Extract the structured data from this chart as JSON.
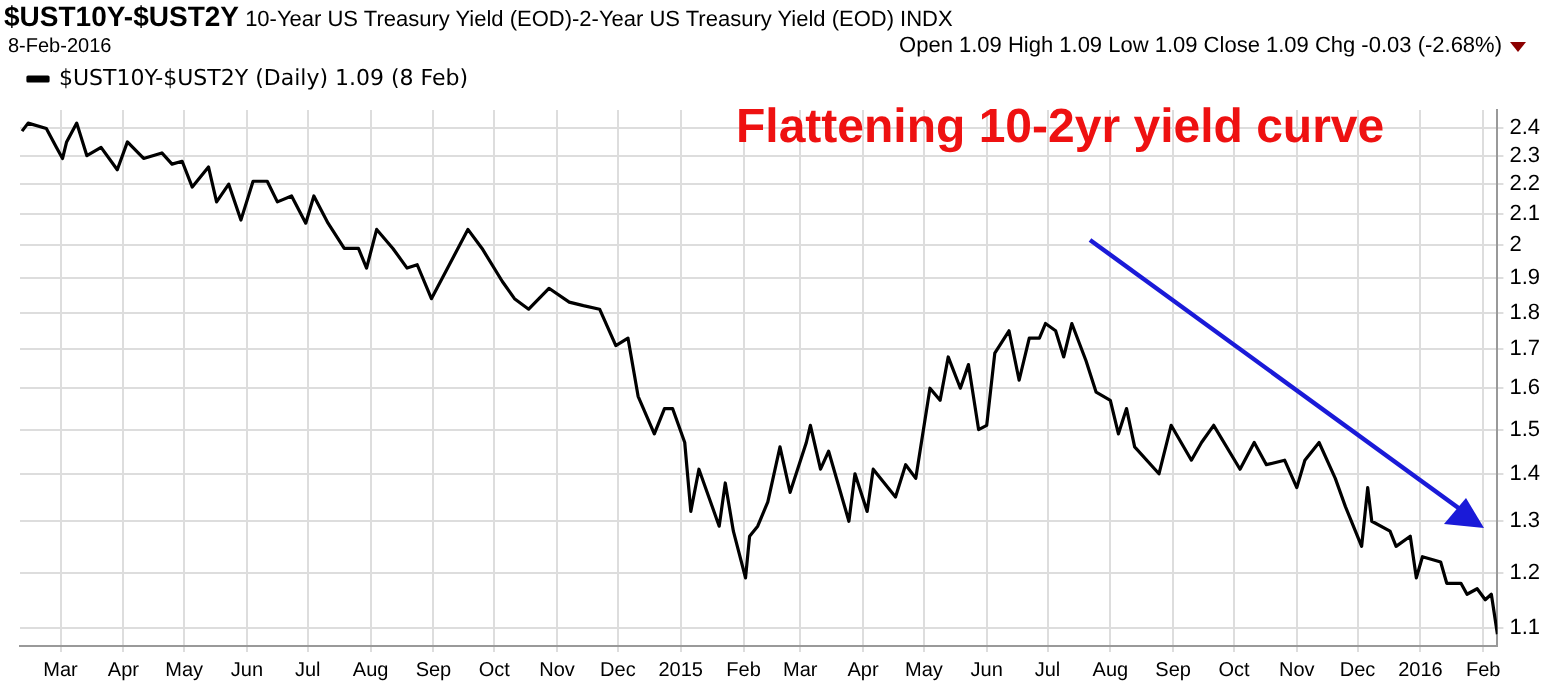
{
  "chart_data": {
    "type": "line",
    "title": "$UST10Y-$UST2Y",
    "subtitle": "10-Year US Treasury Yield (EOD)-2-Year US Treasury Yield (EOD) INDX",
    "annotations": [
      "8-Feb-2016",
      "Open 1.09 High 1.09 Low 1.09 Close 1.09 Chg -0.03 (-2.68%)",
      "Flattening 10-2yr yield curve"
    ],
    "log": "y",
    "grid": true,
    "legend": "top left",
    "xlim": [
      "2014-02-09",
      "2016-02-08"
    ],
    "xticks": [
      {
        "value": "2014-03-01",
        "label": "Mar"
      },
      {
        "value": "2014-04-01",
        "label": "Apr"
      },
      {
        "value": "2014-05-01",
        "label": "May"
      },
      {
        "value": "2014-06-01",
        "label": "Jun"
      },
      {
        "value": "2014-07-01",
        "label": "Jul"
      },
      {
        "value": "2014-08-01",
        "label": "Aug"
      },
      {
        "value": "2014-09-01",
        "label": "Sep"
      },
      {
        "value": "2014-10-01",
        "label": "Oct"
      },
      {
        "value": "2014-11-01",
        "label": "Nov"
      },
      {
        "value": "2014-12-01",
        "label": "Dec"
      },
      {
        "value": "2015-01-01",
        "label": "2015"
      },
      {
        "value": "2015-02-01",
        "label": "Feb"
      },
      {
        "value": "2015-03-01",
        "label": "Mar"
      },
      {
        "value": "2015-04-01",
        "label": "Apr"
      },
      {
        "value": "2015-05-01",
        "label": "May"
      },
      {
        "value": "2015-06-01",
        "label": "Jun"
      },
      {
        "value": "2015-07-01",
        "label": "Jul"
      },
      {
        "value": "2015-08-01",
        "label": "Aug"
      },
      {
        "value": "2015-09-01",
        "label": "Sep"
      },
      {
        "value": "2015-10-01",
        "label": "Oct"
      },
      {
        "value": "2015-11-01",
        "label": "Nov"
      },
      {
        "value": "2015-12-01",
        "label": "Dec"
      },
      {
        "value": "2016-01-01",
        "label": "2016"
      },
      {
        "value": "2016-02-01",
        "label": "Feb"
      }
    ],
    "ylim": [
      1.07,
      2.47
    ],
    "yticks": [
      1.1,
      1.2,
      1.3,
      1.4,
      1.5,
      1.6,
      1.7,
      1.8,
      1.9,
      2.0,
      2.1,
      2.2,
      2.3,
      2.4
    ],
    "series": [
      {
        "name": "$UST10Y-$UST2Y (Daily) 1.09 (8 Feb)",
        "color": "#000000",
        "x": [
          "2014-02-10",
          "2014-02-13",
          "2014-02-22",
          "2014-02-27",
          "2014-03-02",
          "2014-03-04",
          "2014-03-09",
          "2014-03-14",
          "2014-03-21",
          "2014-03-29",
          "2014-04-03",
          "2014-04-11",
          "2014-04-20",
          "2014-04-25",
          "2014-04-30",
          "2014-05-05",
          "2014-05-13",
          "2014-05-17",
          "2014-05-23",
          "2014-05-29",
          "2014-06-04",
          "2014-06-11",
          "2014-06-16",
          "2014-06-23",
          "2014-06-30",
          "2014-07-04",
          "2014-07-11",
          "2014-07-19",
          "2014-07-26",
          "2014-07-30",
          "2014-08-04",
          "2014-08-12",
          "2014-08-19",
          "2014-08-24",
          "2014-08-31",
          "2014-09-08",
          "2014-09-18",
          "2014-09-25",
          "2014-10-05",
          "2014-10-11",
          "2014-10-18",
          "2014-10-28",
          "2014-11-07",
          "2014-11-14",
          "2014-11-22",
          "2014-11-30",
          "2014-12-06",
          "2014-12-11",
          "2014-12-19",
          "2014-12-24",
          "2014-12-28",
          "2015-01-03",
          "2015-01-06",
          "2015-01-10",
          "2015-01-20",
          "2015-01-23",
          "2015-01-27",
          "2015-02-02",
          "2015-02-04",
          "2015-02-08",
          "2015-02-13",
          "2015-02-19",
          "2015-02-24",
          "2015-03-04",
          "2015-03-06",
          "2015-03-11",
          "2015-03-15",
          "2015-03-25",
          "2015-03-28",
          "2015-04-03",
          "2015-04-06",
          "2015-04-17",
          "2015-04-22",
          "2015-04-27",
          "2015-05-04",
          "2015-05-09",
          "2015-05-13",
          "2015-05-19",
          "2015-05-23",
          "2015-05-28",
          "2015-06-01",
          "2015-06-05",
          "2015-06-12",
          "2015-06-17",
          "2015-06-22",
          "2015-06-27",
          "2015-06-30",
          "2015-07-05",
          "2015-07-09",
          "2015-07-13",
          "2015-07-20",
          "2015-07-25",
          "2015-08-01",
          "2015-08-05",
          "2015-08-09",
          "2015-08-13",
          "2015-08-25",
          "2015-08-31",
          "2015-09-10",
          "2015-09-15",
          "2015-09-21",
          "2015-10-04",
          "2015-10-11",
          "2015-10-17",
          "2015-10-26",
          "2015-11-01",
          "2015-11-05",
          "2015-11-12",
          "2015-11-20",
          "2015-11-25",
          "2015-12-03",
          "2015-12-06",
          "2015-12-08",
          "2015-12-17",
          "2015-12-20",
          "2015-12-27",
          "2015-12-30",
          "2016-01-02",
          "2016-01-11",
          "2016-01-14",
          "2016-01-21",
          "2016-01-24",
          "2016-01-29",
          "2016-02-02",
          "2016-02-05",
          "2016-02-08"
        ],
        "values": [
          2.39,
          2.42,
          2.4,
          2.33,
          2.29,
          2.35,
          2.42,
          2.3,
          2.33,
          2.25,
          2.35,
          2.29,
          2.31,
          2.27,
          2.28,
          2.19,
          2.26,
          2.14,
          2.2,
          2.08,
          2.21,
          2.21,
          2.14,
          2.16,
          2.07,
          2.16,
          2.07,
          1.99,
          1.99,
          1.93,
          2.05,
          1.99,
          1.93,
          1.94,
          1.84,
          1.93,
          2.05,
          1.99,
          1.89,
          1.84,
          1.81,
          1.87,
          1.83,
          1.82,
          1.81,
          1.71,
          1.73,
          1.58,
          1.49,
          1.55,
          1.55,
          1.47,
          1.32,
          1.41,
          1.29,
          1.38,
          1.28,
          1.19,
          1.27,
          1.29,
          1.34,
          1.46,
          1.36,
          1.47,
          1.51,
          1.41,
          1.45,
          1.3,
          1.4,
          1.32,
          1.41,
          1.35,
          1.42,
          1.39,
          1.6,
          1.57,
          1.68,
          1.6,
          1.66,
          1.5,
          1.51,
          1.69,
          1.75,
          1.62,
          1.73,
          1.73,
          1.77,
          1.75,
          1.68,
          1.77,
          1.67,
          1.59,
          1.57,
          1.49,
          1.55,
          1.46,
          1.4,
          1.51,
          1.43,
          1.47,
          1.51,
          1.41,
          1.47,
          1.42,
          1.43,
          1.37,
          1.43,
          1.47,
          1.39,
          1.33,
          1.25,
          1.37,
          1.3,
          1.28,
          1.25,
          1.27,
          1.19,
          1.23,
          1.22,
          1.18,
          1.18,
          1.16,
          1.17,
          1.15,
          1.16,
          1.09
        ]
      }
    ]
  }
}
